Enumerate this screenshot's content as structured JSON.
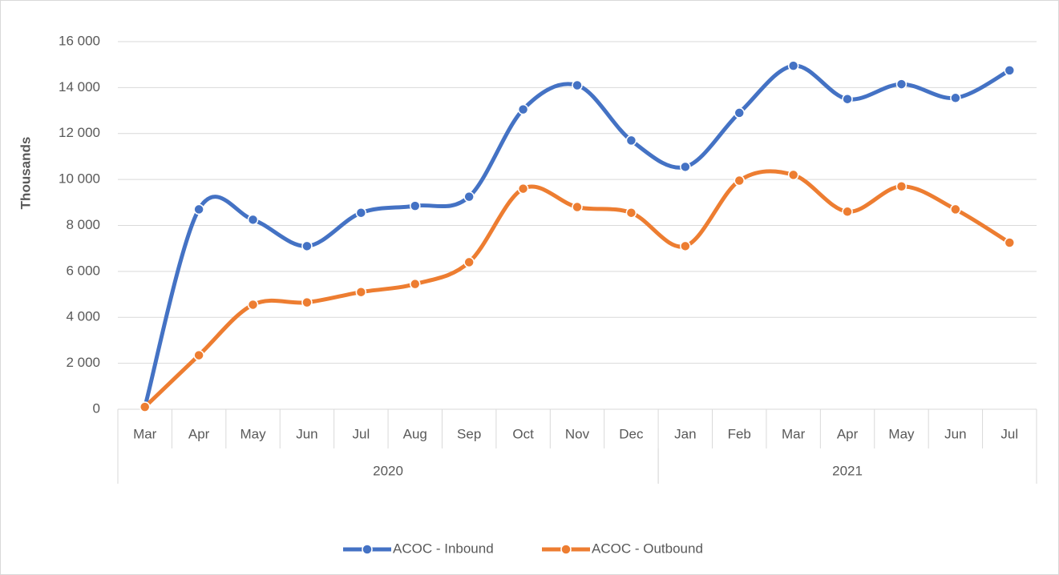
{
  "chart_data": {
    "type": "line",
    "y_label": "Thousands",
    "category_groups": [
      {
        "label": "2020",
        "categories": [
          "Mar",
          "Apr",
          "May",
          "Jun",
          "Jul",
          "Aug",
          "Sep",
          "Oct",
          "Nov",
          "Dec"
        ]
      },
      {
        "label": "2021",
        "categories": [
          "Jan",
          "Feb",
          "Mar",
          "Apr",
          "May",
          "Jun",
          "Jul"
        ]
      }
    ],
    "series": [
      {
        "name": "ACOC - Inbound",
        "color": "#4472c4",
        "values": [
          100,
          8700,
          8250,
          7100,
          8550,
          8850,
          9250,
          13050,
          14100,
          11700,
          10550,
          12900,
          14950,
          13500,
          14150,
          13550,
          14750
        ]
      },
      {
        "name": "ACOC - Outbound",
        "color": "#ed7d31",
        "values": [
          100,
          2350,
          4550,
          4650,
          5100,
          5450,
          6400,
          9600,
          8800,
          8550,
          7100,
          9950,
          10200,
          8600,
          9700,
          8700,
          7250
        ]
      }
    ],
    "ylim": [
      0,
      16000
    ],
    "yticks": [
      0,
      {
        "value": 2000,
        "label": "2 000"
      },
      {
        "value": 4000,
        "label": "4 000"
      },
      {
        "value": 6000,
        "label": "6 000"
      },
      {
        "value": 8000,
        "label": "8 000"
      },
      {
        "value": 10000,
        "label": "10 000"
      },
      {
        "value": 12000,
        "label": "12 000"
      },
      {
        "value": 14000,
        "label": "14 000"
      },
      {
        "value": 16000,
        "label": "16 000"
      }
    ],
    "grid": true,
    "smooth": true,
    "markers": true,
    "legend": "bottom"
  }
}
